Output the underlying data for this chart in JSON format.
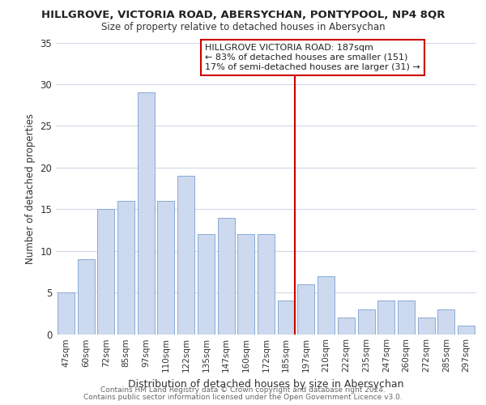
{
  "title": "HILLGROVE, VICTORIA ROAD, ABERSYCHAN, PONTYPOOL, NP4 8QR",
  "subtitle": "Size of property relative to detached houses in Abersychan",
  "xlabel": "Distribution of detached houses by size in Abersychan",
  "ylabel": "Number of detached properties",
  "bar_labels": [
    "47sqm",
    "60sqm",
    "72sqm",
    "85sqm",
    "97sqm",
    "110sqm",
    "122sqm",
    "135sqm",
    "147sqm",
    "160sqm",
    "172sqm",
    "185sqm",
    "197sqm",
    "210sqm",
    "222sqm",
    "235sqm",
    "247sqm",
    "260sqm",
    "272sqm",
    "285sqm",
    "297sqm"
  ],
  "bar_values": [
    5,
    9,
    15,
    16,
    29,
    16,
    19,
    12,
    14,
    12,
    12,
    4,
    6,
    7,
    2,
    3,
    4,
    4,
    2,
    3,
    1
  ],
  "bar_color": "#ccd9ee",
  "bar_edge_color": "#8aabd4",
  "marker_line_x_label": "185sqm",
  "marker_line_color": "#cc0000",
  "annotation_title": "HILLGROVE VICTORIA ROAD: 187sqm",
  "annotation_line1": "← 83% of detached houses are smaller (151)",
  "annotation_line2": "17% of semi-detached houses are larger (31) →",
  "annotation_box_color": "#ffffff",
  "annotation_box_edge_color": "#cc0000",
  "ylim": [
    0,
    35
  ],
  "yticks": [
    0,
    5,
    10,
    15,
    20,
    25,
    30,
    35
  ],
  "footer_line1": "Contains HM Land Registry data © Crown copyright and database right 2024.",
  "footer_line2": "Contains public sector information licensed under the Open Government Licence v3.0.",
  "background_color": "#ffffff",
  "grid_color": "#d0d8e8"
}
